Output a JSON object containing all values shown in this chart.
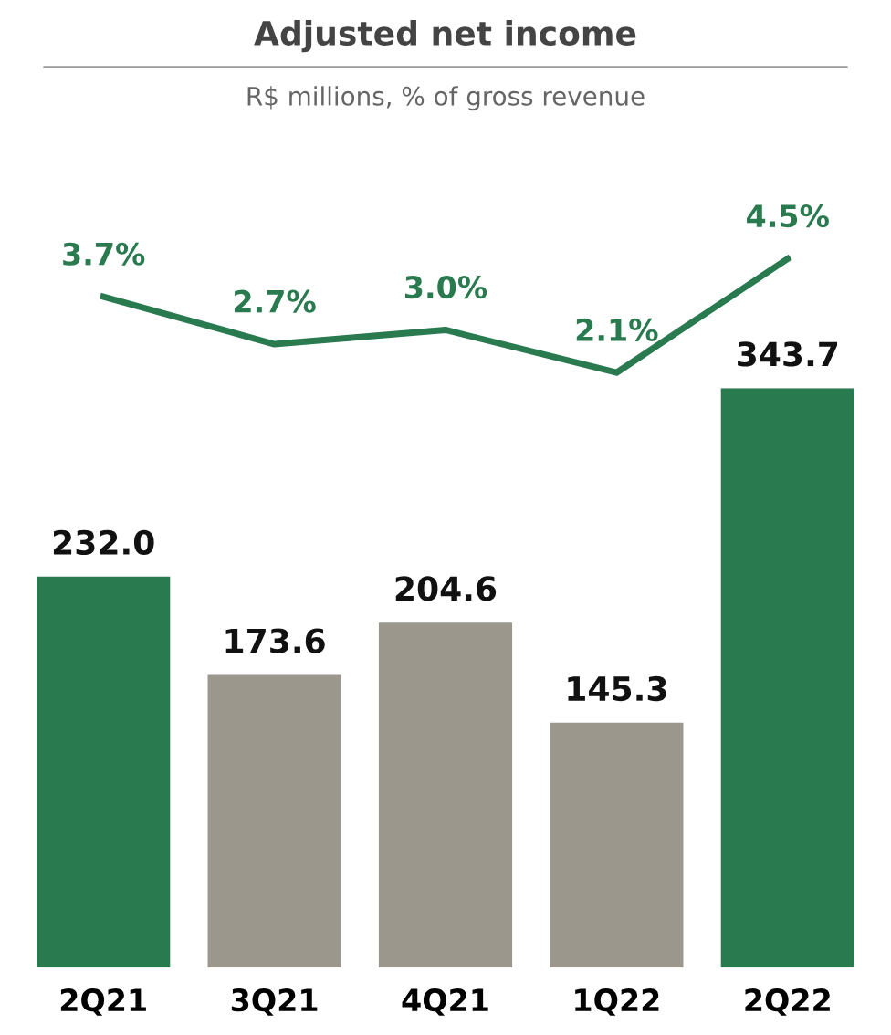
{
  "chart_data": [
    {
      "type": "line",
      "title": "Adjusted net income",
      "subtitle": "R$ millions, % of gross revenue",
      "categories": [
        null,
        null,
        null,
        null,
        null
      ],
      "series": [
        {
          "color": "#2a7a50",
          "values": [
            3.7,
            2.7,
            3.0,
            2.1,
            4.5
          ],
          "value_labels": [
            "3.7%",
            "2.7%",
            "3.0%",
            "2.1%",
            "4.5%"
          ]
        }
      ],
      "tick_labels": false,
      "grid": false,
      "marker": "none",
      "line_style": "solid"
    },
    {
      "type": "bar",
      "categories": [
        "2Q21",
        "3Q21",
        "4Q21",
        "1Q22",
        "2Q22"
      ],
      "series": [
        {
          "colors": [
            "#2a7a50",
            "#9b978c",
            "#9b978c",
            "#9b978c",
            "#2a7a50"
          ],
          "values": [
            232.0,
            173.6,
            204.6,
            145.3,
            343.7
          ],
          "value_labels": [
            "232.0",
            "173.6",
            "204.6",
            "145.3",
            "343.7"
          ]
        }
      ],
      "tick_labels": "x",
      "grid": false
    }
  ]
}
